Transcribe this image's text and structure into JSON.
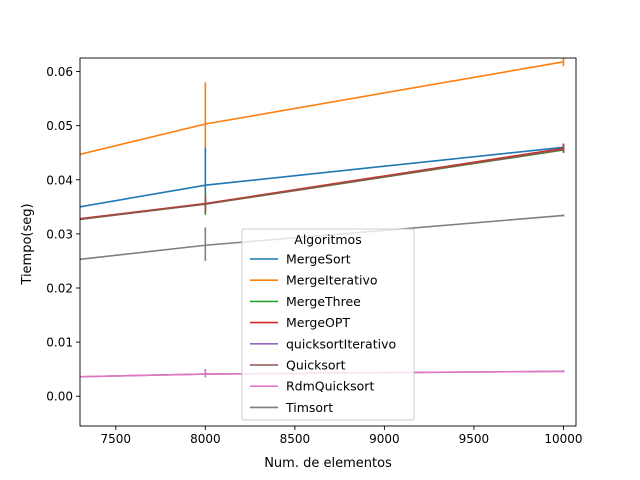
{
  "chart_data": {
    "type": "line",
    "xlabel": "Num. de elementos",
    "ylabel": "Tiempo(seg)",
    "xlim": [
      7300,
      10070
    ],
    "ylim": [
      -0.0055,
      0.0625
    ],
    "x_ticks": [
      7500,
      8000,
      8500,
      9000,
      9500,
      10000
    ],
    "y_ticks": [
      0.0,
      0.01,
      0.02,
      0.03,
      0.04,
      0.05,
      0.06
    ],
    "x_tick_labels": [
      "7500",
      "8000",
      "8500",
      "9000",
      "9500",
      "10000"
    ],
    "y_tick_labels": [
      "0.00",
      "0.01",
      "0.02",
      "0.03",
      "0.04",
      "0.05",
      "0.06"
    ],
    "x": [
      7300,
      8000,
      10000
    ],
    "grid": false,
    "legend": {
      "title": "Algoritmos",
      "placement": "lower center"
    },
    "series": [
      {
        "name": "MergeSort",
        "color": "#1f77b4",
        "values": [
          0.035,
          0.039,
          0.046
        ],
        "error": [
          null,
          [
            0.0345,
            0.046
          ],
          [
            0.0455,
            0.0465
          ]
        ]
      },
      {
        "name": "MergeIterativo",
        "color": "#ff7f0e",
        "values": [
          0.0447,
          0.0503,
          0.0618
        ],
        "error": [
          null,
          [
            0.046,
            0.058
          ],
          [
            0.061,
            0.0625
          ]
        ]
      },
      {
        "name": "MergeThree",
        "color": "#2ca02c",
        "values": [
          0.0327,
          0.0355,
          0.0455
        ],
        "error": [
          null,
          [
            0.0335,
            0.0375
          ],
          [
            0.045,
            0.046
          ]
        ]
      },
      {
        "name": "MergeOPT",
        "color": "#d62728",
        "values": [
          0.0328,
          0.0356,
          0.0458
        ],
        "error": [
          null,
          [
            0.034,
            0.037
          ],
          [
            0.045,
            0.0467
          ]
        ]
      },
      {
        "name": "quicksortIterativo",
        "color": "#9467bd",
        "values": [
          0.0036,
          0.0041,
          0.0046
        ],
        "error": [
          null,
          [
            0.0035,
            0.005
          ],
          [
            0.0044,
            0.0048
          ]
        ]
      },
      {
        "name": "Quicksort",
        "color": "#8c564b",
        "values": [
          0.0327,
          0.0355,
          0.0456
        ],
        "error": [
          null,
          [
            0.034,
            0.037
          ],
          [
            0.045,
            0.0462
          ]
        ]
      },
      {
        "name": "RdmQuicksort",
        "color": "#e377c2",
        "values": [
          0.0036,
          0.0041,
          0.0046
        ],
        "error": [
          null,
          [
            0.0036,
            0.0048
          ],
          [
            0.0044,
            0.0048
          ]
        ]
      },
      {
        "name": "Timsort",
        "color": "#7f7f7f",
        "values": [
          0.0253,
          0.0279,
          0.0334
        ],
        "error": [
          null,
          [
            0.025,
            0.0312
          ],
          [
            0.0332,
            0.0336
          ]
        ]
      }
    ]
  }
}
